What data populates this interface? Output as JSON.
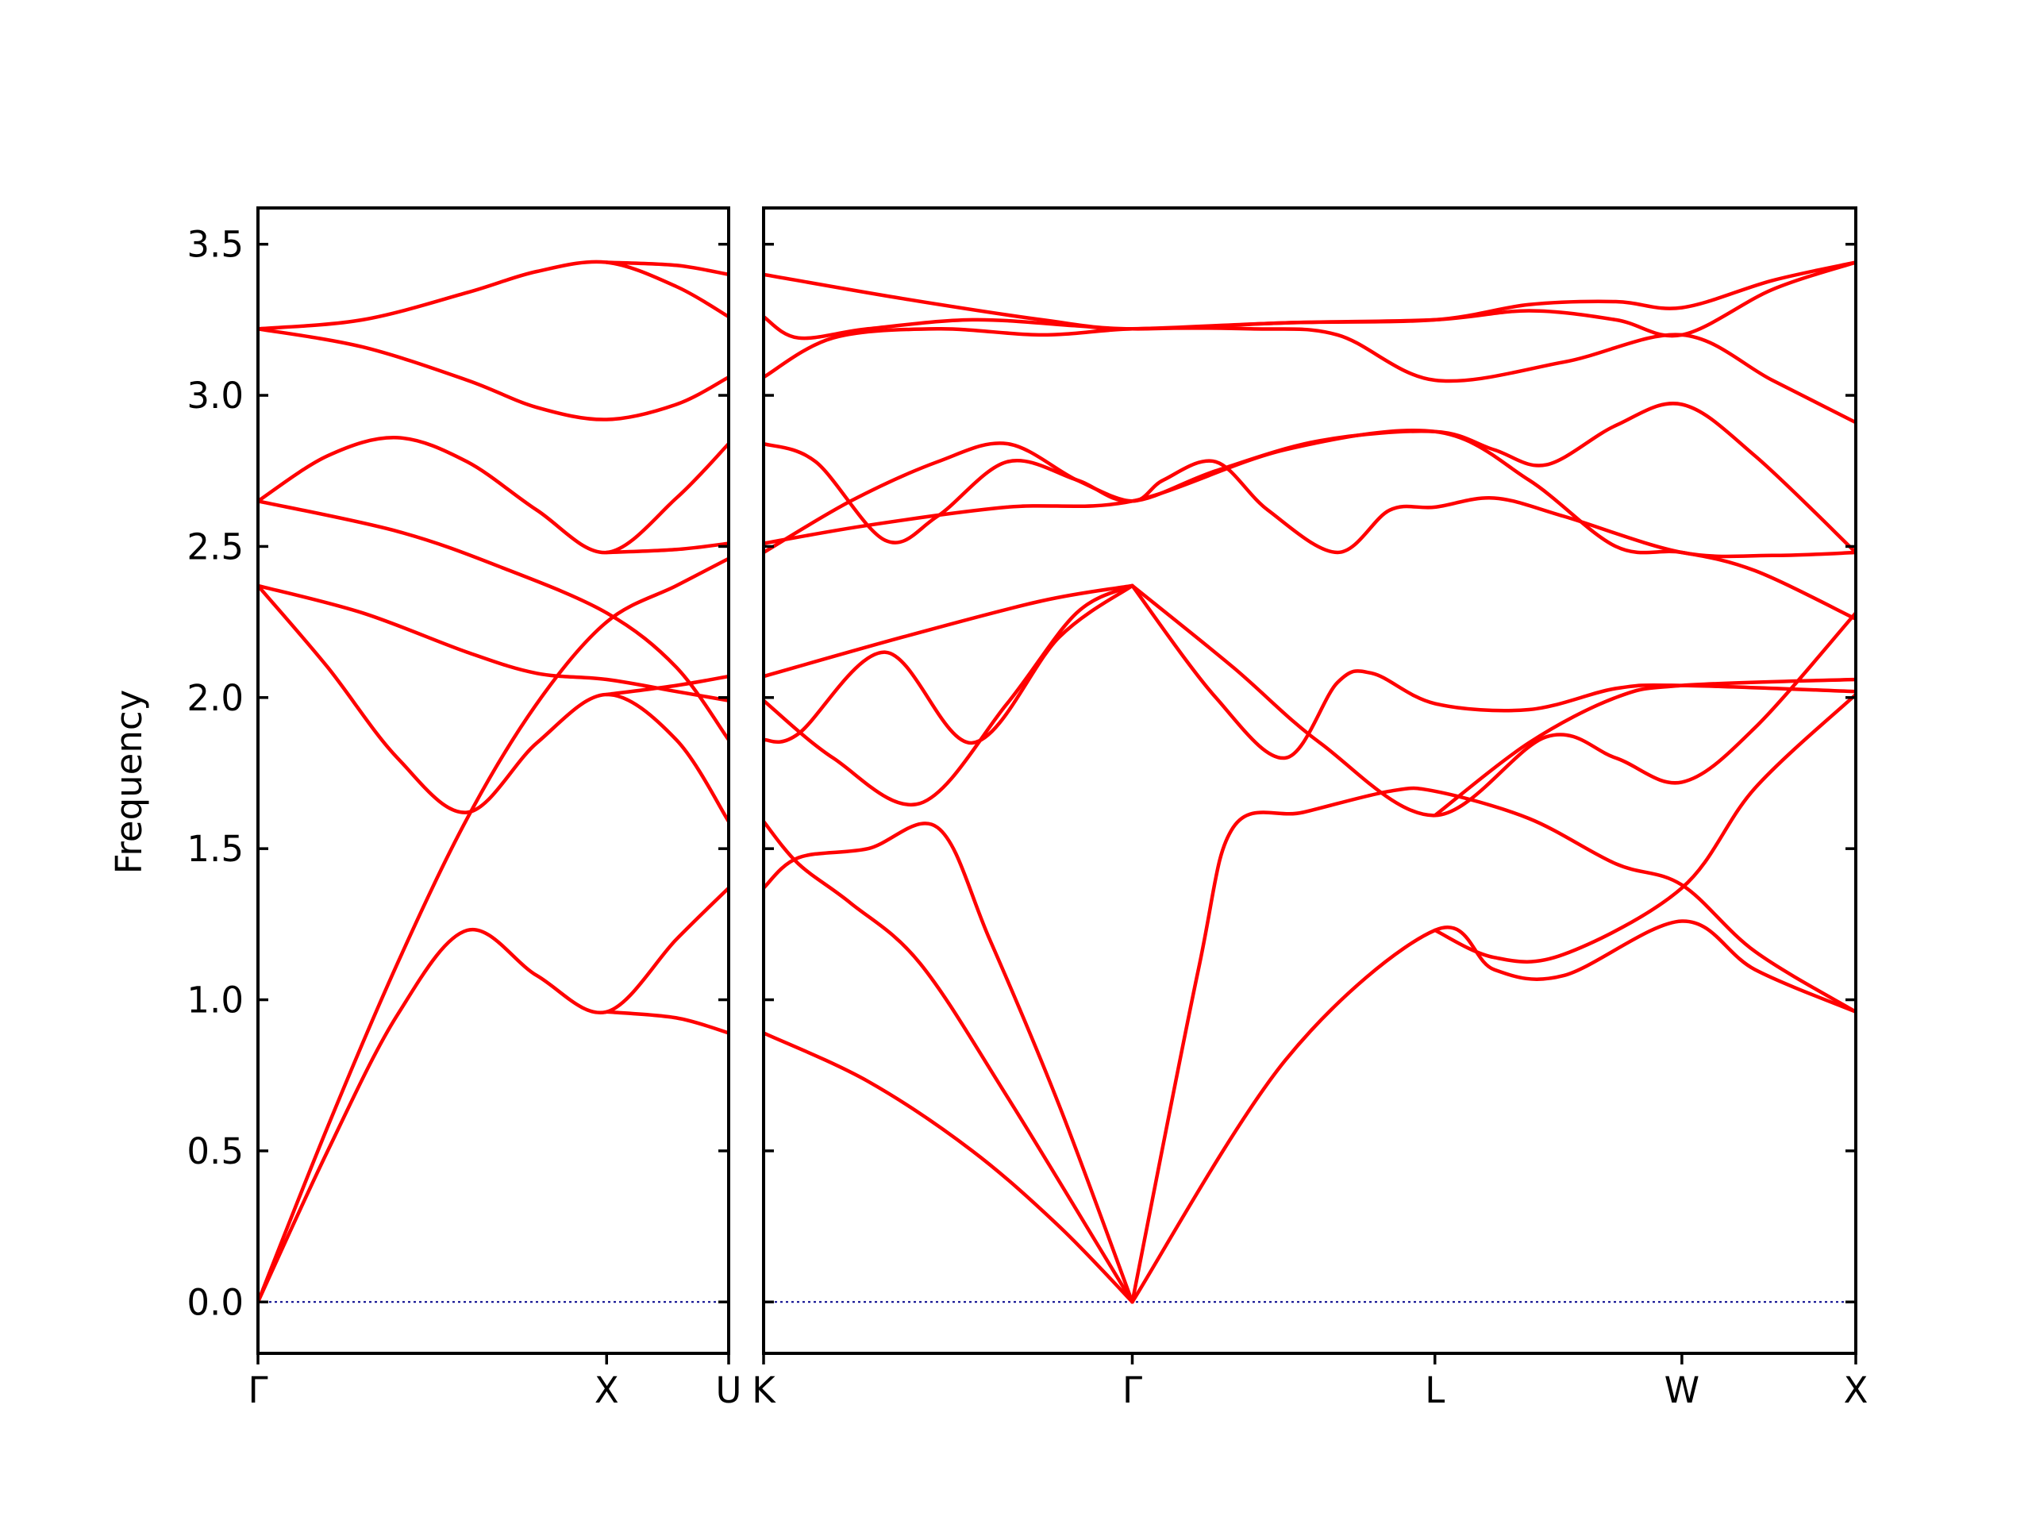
{
  "chart_data": {
    "type": "line",
    "ylabel": "Frequency",
    "xlabel": "",
    "title": "",
    "ylim": [
      -0.17,
      3.62
    ],
    "yticks": [
      "0.0",
      "0.5",
      "1.0",
      "1.5",
      "2.0",
      "2.5",
      "3.0",
      "3.5"
    ],
    "band_color": "#ff0000",
    "zero_line_color": "#00008b",
    "grid": false,
    "legend": "none",
    "panels": [
      {
        "name": "panel-1",
        "xlim": [
          0,
          1.35
        ],
        "xticks": [
          {
            "x": 0.0,
            "label": "Γ"
          },
          {
            "x": 1.0,
            "label": "X"
          },
          {
            "x": 1.35,
            "label": "U"
          }
        ],
        "bands": [
          [
            [
              0,
              0
            ],
            [
              0.2,
              0.5
            ],
            [
              0.4,
              0.95
            ],
            [
              0.6,
              1.23
            ],
            [
              0.8,
              1.08
            ],
            [
              1.0,
              0.96
            ],
            [
              1.2,
              1.2
            ],
            [
              1.35,
              1.37
            ]
          ],
          [
            [
              1.0,
              0.96
            ],
            [
              1.2,
              0.94
            ],
            [
              1.35,
              0.89
            ]
          ],
          [
            [
              0,
              0
            ],
            [
              0.2,
              0.58
            ],
            [
              0.4,
              1.12
            ],
            [
              0.6,
              1.6
            ],
            [
              0.8,
              1.98
            ],
            [
              1.0,
              2.25
            ],
            [
              1.2,
              2.37
            ],
            [
              1.35,
              2.46
            ]
          ],
          [
            [
              0,
              2.37
            ],
            [
              0.2,
              2.1
            ],
            [
              0.4,
              1.8
            ],
            [
              0.6,
              1.62
            ],
            [
              0.8,
              1.85
            ],
            [
              1.0,
              2.01
            ],
            [
              1.2,
              1.86
            ],
            [
              1.35,
              1.59
            ]
          ],
          [
            [
              1.0,
              2.01
            ],
            [
              1.2,
              2.04
            ],
            [
              1.35,
              2.07
            ]
          ],
          [
            [
              0,
              2.37
            ],
            [
              0.3,
              2.28
            ],
            [
              0.6,
              2.15
            ],
            [
              0.8,
              2.08
            ],
            [
              1.0,
              2.06
            ],
            [
              1.2,
              2.02
            ],
            [
              1.35,
              1.99
            ]
          ],
          [
            [
              0,
              2.65
            ],
            [
              0.4,
              2.55
            ],
            [
              0.7,
              2.43
            ],
            [
              1.0,
              2.28
            ],
            [
              1.2,
              2.1
            ],
            [
              1.35,
              1.86
            ]
          ],
          [
            [
              0,
              2.65
            ],
            [
              0.2,
              2.8
            ],
            [
              0.4,
              2.86
            ],
            [
              0.6,
              2.78
            ],
            [
              0.8,
              2.62
            ],
            [
              1.0,
              2.48
            ],
            [
              1.2,
              2.66
            ],
            [
              1.35,
              2.84
            ]
          ],
          [
            [
              1.0,
              2.48
            ],
            [
              1.2,
              2.49
            ],
            [
              1.35,
              2.51
            ]
          ],
          [
            [
              0,
              3.22
            ],
            [
              0.3,
              3.16
            ],
            [
              0.6,
              3.05
            ],
            [
              0.8,
              2.96
            ],
            [
              1.0,
              2.92
            ],
            [
              1.2,
              2.97
            ],
            [
              1.35,
              3.06
            ]
          ],
          [
            [
              0,
              3.22
            ],
            [
              0.3,
              3.25
            ],
            [
              0.6,
              3.34
            ],
            [
              0.8,
              3.41
            ],
            [
              1.0,
              3.44
            ],
            [
              1.2,
              3.36
            ],
            [
              1.35,
              3.26
            ]
          ],
          [
            [
              1.0,
              3.44
            ],
            [
              1.2,
              3.43
            ],
            [
              1.35,
              3.4
            ]
          ]
        ]
      },
      {
        "name": "panel-2",
        "xlim": [
          0,
          3.14
        ],
        "xticks": [
          {
            "x": 0.0,
            "label": "K"
          },
          {
            "x": 1.06,
            "label": "Γ"
          },
          {
            "x": 1.93,
            "label": "L"
          },
          {
            "x": 2.64,
            "label": "W"
          },
          {
            "x": 3.14,
            "label": "X"
          }
        ],
        "bands": [
          [
            [
              0,
              0.89
            ],
            [
              0.3,
              0.73
            ],
            [
              0.6,
              0.5
            ],
            [
              0.85,
              0.25
            ],
            [
              1.06,
              0
            ]
          ],
          [
            [
              0,
              1.59
            ],
            [
              0.1,
              1.45
            ],
            [
              0.25,
              1.32
            ],
            [
              0.45,
              1.12
            ],
            [
              0.7,
              0.68
            ],
            [
              1.06,
              0
            ]
          ],
          [
            [
              0,
              1.37
            ],
            [
              0.1,
              1.47
            ],
            [
              0.3,
              1.5
            ],
            [
              0.5,
              1.57
            ],
            [
              0.65,
              1.2
            ],
            [
              0.85,
              0.65
            ],
            [
              1.06,
              0
            ]
          ],
          [
            [
              0,
              1.99
            ],
            [
              0.2,
              1.8
            ],
            [
              0.45,
              1.65
            ],
            [
              0.7,
              1.98
            ],
            [
              0.9,
              2.28
            ],
            [
              1.06,
              2.37
            ]
          ],
          [
            [
              0,
              1.86
            ],
            [
              0.1,
              1.88
            ],
            [
              0.35,
              2.15
            ],
            [
              0.6,
              1.85
            ],
            [
              0.85,
              2.2
            ],
            [
              1.06,
              2.37
            ]
          ],
          [
            [
              0,
              2.07
            ],
            [
              0.4,
              2.2
            ],
            [
              0.8,
              2.32
            ],
            [
              1.06,
              2.37
            ]
          ],
          [
            [
              1.06,
              2.37
            ],
            [
              1.3,
              2.0
            ],
            [
              1.5,
              1.8
            ],
            [
              1.65,
              2.05
            ],
            [
              1.75,
              2.08
            ],
            [
              1.93,
              1.98
            ],
            [
              2.2,
              1.96
            ],
            [
              2.45,
              2.03
            ],
            [
              2.64,
              2.04
            ],
            [
              3.14,
              2.02
            ]
          ],
          [
            [
              1.06,
              2.37
            ],
            [
              1.35,
              2.1
            ],
            [
              1.6,
              1.85
            ],
            [
              1.93,
              1.61
            ],
            [
              2.25,
              1.87
            ],
            [
              2.45,
              1.8
            ],
            [
              2.64,
              1.72
            ],
            [
              2.85,
              1.9
            ],
            [
              3.14,
              2.28
            ]
          ],
          [
            [
              1.06,
              0
            ],
            [
              1.25,
              1.1
            ],
            [
              1.35,
              1.57
            ],
            [
              1.55,
              1.62
            ],
            [
              1.8,
              1.69
            ],
            [
              1.93,
              1.69
            ],
            [
              2.2,
              1.6
            ],
            [
              2.45,
              1.45
            ],
            [
              2.64,
              1.38
            ],
            [
              2.85,
              1.16
            ],
            [
              3.14,
              0.96
            ]
          ],
          [
            [
              1.06,
              0
            ],
            [
              1.5,
              0.8
            ],
            [
              1.93,
              1.23
            ],
            [
              2.1,
              1.1
            ],
            [
              2.3,
              1.08
            ],
            [
              2.64,
              1.26
            ],
            [
              2.85,
              1.1
            ],
            [
              3.14,
              0.96
            ]
          ],
          [
            [
              1.93,
              1.23
            ],
            [
              2.1,
              1.14
            ],
            [
              2.3,
              1.15
            ],
            [
              2.64,
              1.37
            ],
            [
              2.85,
              1.7
            ],
            [
              3.14,
              2.01
            ]
          ],
          [
            [
              1.93,
              1.61
            ],
            [
              2.2,
              1.85
            ],
            [
              2.45,
              2.0
            ],
            [
              2.64,
              2.04
            ],
            [
              3.14,
              2.06
            ]
          ],
          [
            [
              0,
              2.51
            ],
            [
              0.3,
              2.57
            ],
            [
              0.7,
              2.63
            ],
            [
              1.06,
              2.65
            ],
            [
              1.5,
              2.82
            ],
            [
              1.93,
              2.88
            ],
            [
              2.2,
              2.72
            ],
            [
              2.45,
              2.5
            ],
            [
              2.64,
              2.48
            ],
            [
              2.85,
              2.42
            ],
            [
              3.14,
              2.26
            ]
          ],
          [
            [
              0,
              2.48
            ],
            [
              0.25,
              2.65
            ],
            [
              0.5,
              2.78
            ],
            [
              0.7,
              2.84
            ],
            [
              0.9,
              2.72
            ],
            [
              1.06,
              2.65
            ],
            [
              1.15,
              2.72
            ],
            [
              1.3,
              2.78
            ],
            [
              1.45,
              2.62
            ],
            [
              1.65,
              2.48
            ],
            [
              1.8,
              2.62
            ],
            [
              1.93,
              2.63
            ],
            [
              2.1,
              2.66
            ],
            [
              2.3,
              2.6
            ],
            [
              2.64,
              2.48
            ],
            [
              2.9,
              2.47
            ],
            [
              3.14,
              2.48
            ]
          ],
          [
            [
              0,
              2.84
            ],
            [
              0.15,
              2.78
            ],
            [
              0.35,
              2.52
            ],
            [
              0.5,
              2.6
            ],
            [
              0.7,
              2.78
            ],
            [
              0.9,
              2.72
            ],
            [
              1.06,
              2.65
            ],
            [
              1.3,
              2.75
            ],
            [
              1.6,
              2.85
            ],
            [
              1.93,
              2.88
            ],
            [
              2.1,
              2.82
            ],
            [
              2.25,
              2.77
            ],
            [
              2.45,
              2.9
            ],
            [
              2.64,
              2.97
            ],
            [
              2.85,
              2.8
            ],
            [
              3.14,
              2.48
            ]
          ],
          [
            [
              0,
              3.06
            ],
            [
              0.2,
              3.19
            ],
            [
              0.5,
              3.22
            ],
            [
              0.8,
              3.2
            ],
            [
              1.06,
              3.22
            ],
            [
              1.4,
              3.22
            ],
            [
              1.65,
              3.2
            ],
            [
              1.93,
              3.05
            ],
            [
              2.3,
              3.11
            ],
            [
              2.64,
              3.2
            ],
            [
              2.9,
              3.05
            ],
            [
              3.14,
              2.91
            ]
          ],
          [
            [
              0,
              3.26
            ],
            [
              0.1,
              3.19
            ],
            [
              0.3,
              3.22
            ],
            [
              0.6,
              3.25
            ],
            [
              0.9,
              3.23
            ],
            [
              1.06,
              3.22
            ],
            [
              1.5,
              3.24
            ],
            [
              1.93,
              3.25
            ],
            [
              2.2,
              3.28
            ],
            [
              2.45,
              3.25
            ],
            [
              2.64,
              3.2
            ],
            [
              2.9,
              3.35
            ],
            [
              3.14,
              3.44
            ]
          ],
          [
            [
              0,
              3.4
            ],
            [
              0.4,
              3.32
            ],
            [
              0.8,
              3.25
            ],
            [
              1.06,
              3.22
            ],
            [
              1.5,
              3.24
            ],
            [
              1.93,
              3.25
            ],
            [
              2.2,
              3.3
            ],
            [
              2.45,
              3.31
            ],
            [
              2.64,
              3.29
            ],
            [
              2.9,
              3.38
            ],
            [
              3.14,
              3.44
            ]
          ]
        ]
      }
    ]
  }
}
